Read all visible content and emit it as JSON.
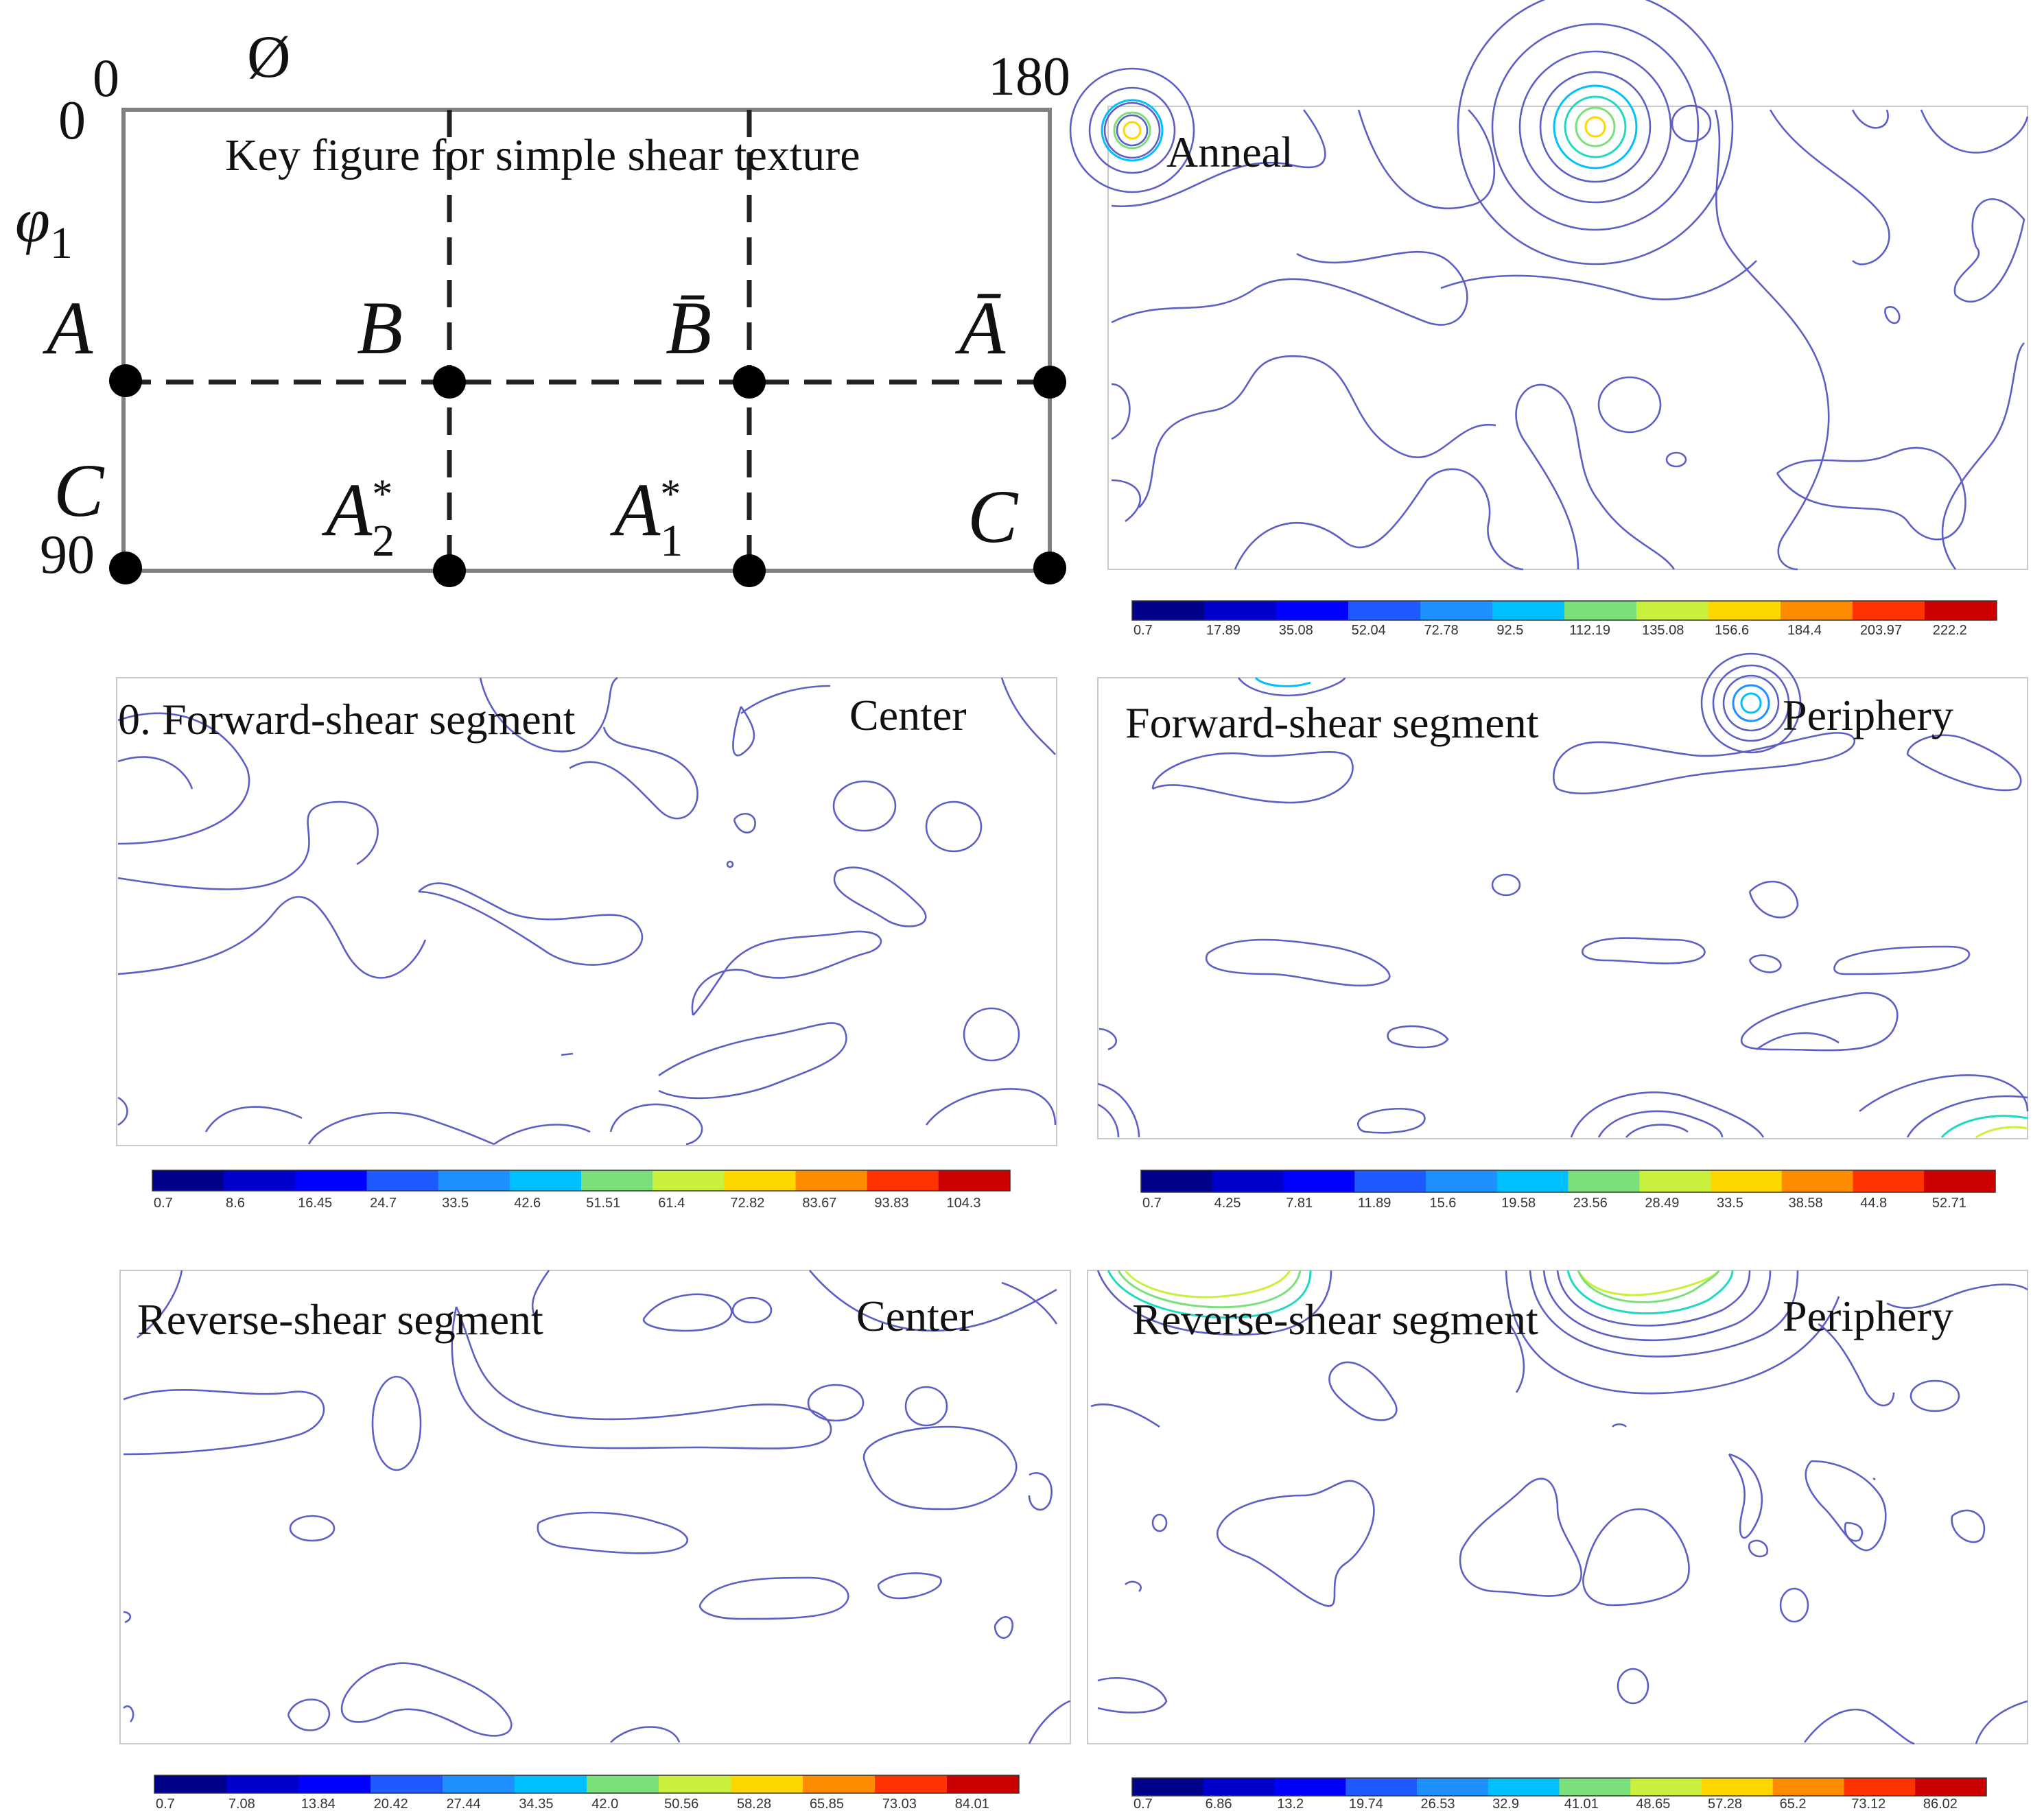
{
  "key_figure": {
    "phi_label": "Ø",
    "phi_start": "0",
    "phi_end": "180",
    "phi1_label": "φ1",
    "phi1_start": "0",
    "phi1_end": "90",
    "title": "Key figure for simple shear texture",
    "left_labels": [
      "A",
      "C"
    ],
    "labels_mid": [
      "B",
      "B̄",
      "Ā"
    ],
    "labels_bottom": [
      "A2*",
      "A1*",
      "C"
    ]
  },
  "panels": [
    {
      "id": "anneal",
      "label": "Anneal",
      "corner": "",
      "legend_ticks": [
        "0.7",
        "17.89",
        "35.08",
        "52.04",
        "72.78",
        "92.5",
        "112.19",
        "135.08",
        "156.6",
        "184.4",
        "203.97",
        "222.2"
      ]
    },
    {
      "id": "forward-center",
      "label": "0. Forward-shear segment",
      "corner": "Center",
      "legend_ticks": [
        "0.7",
        "8.6",
        "16.45",
        "24.7",
        "33.5",
        "42.6",
        "51.51",
        "61.4",
        "72.82",
        "83.67",
        "93.83",
        "104.3"
      ]
    },
    {
      "id": "forward-periphery",
      "label": "Forward-shear segment",
      "corner": "Periphery",
      "legend_ticks": [
        "0.7",
        "4.25",
        "7.81",
        "11.89",
        "15.6",
        "19.58",
        "23.56",
        "28.49",
        "33.5",
        "38.58",
        "44.8",
        "52.71"
      ]
    },
    {
      "id": "reverse-center",
      "label": "Reverse-shear segment",
      "corner": "Center",
      "legend_ticks": [
        "0.7",
        "7.08",
        "13.84",
        "20.42",
        "27.44",
        "34.35",
        "42.0",
        "50.56",
        "58.28",
        "65.85",
        "73.03",
        "84.01"
      ]
    },
    {
      "id": "reverse-periphery",
      "label": "Reverse-shear segment",
      "corner": "Periphery",
      "legend_ticks": [
        "0.7",
        "6.86",
        "13.2",
        "19.74",
        "26.53",
        "32.9",
        "41.01",
        "48.65",
        "57.28",
        "65.2",
        "73.12",
        "86.02"
      ]
    }
  ],
  "colors": {
    "contour": "#5d5fc4",
    "colormap": [
      "#00008b",
      "#0000cd",
      "#0000ff",
      "#1e5aff",
      "#1e90ff",
      "#00bfff",
      "#20d9c0",
      "#7be07b",
      "#c8f03c",
      "#ffd700",
      "#ff8c00",
      "#ff3300",
      "#cc0000"
    ]
  }
}
